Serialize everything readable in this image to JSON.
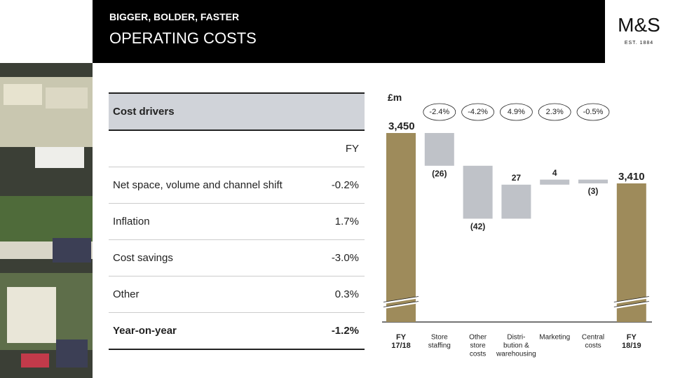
{
  "header": {
    "kicker": "BIGGER, BOLDER, FASTER",
    "title": "OPERATING COSTS",
    "logo": "M&S",
    "logo_sub": "EST. 1884"
  },
  "table": {
    "header": "Cost drivers",
    "column": "FY",
    "rows": [
      [
        "Net space, volume and channel shift",
        "-0.2%"
      ],
      [
        "Inflation",
        "1.7%"
      ],
      [
        "Cost savings",
        "-3.0%"
      ],
      [
        "Other",
        "0.3%"
      ]
    ],
    "total": [
      "Year-on-year",
      "-1.2%"
    ]
  },
  "chart_data": {
    "type": "waterfall",
    "unit": "£m",
    "categories": [
      [
        "FY",
        "17/18"
      ],
      [
        "Store",
        "staffing"
      ],
      [
        "Other",
        "store",
        "costs"
      ],
      [
        "Distri-",
        "bution &",
        "warehousing"
      ],
      [
        "Marketing"
      ],
      [
        "Central",
        "costs"
      ],
      [
        "FY",
        "18/19"
      ]
    ],
    "values": [
      3450,
      -26,
      -42,
      27,
      4,
      -3,
      3410
    ],
    "value_labels": [
      "3,450",
      "(26)",
      "(42)",
      "27",
      "4",
      "(3)",
      "3,410"
    ],
    "changes": [
      -2.4,
      -4.2,
      4.9,
      2.3,
      -0.5
    ],
    "change_labels": [
      "-2.4%",
      "-4.2%",
      "4.9%",
      "2.3%",
      "-0.5%"
    ],
    "ylim": [
      3300,
      3460
    ],
    "axis_break": true,
    "total_color": "#9e8b5b",
    "change_color": "#bfc2c8"
  }
}
